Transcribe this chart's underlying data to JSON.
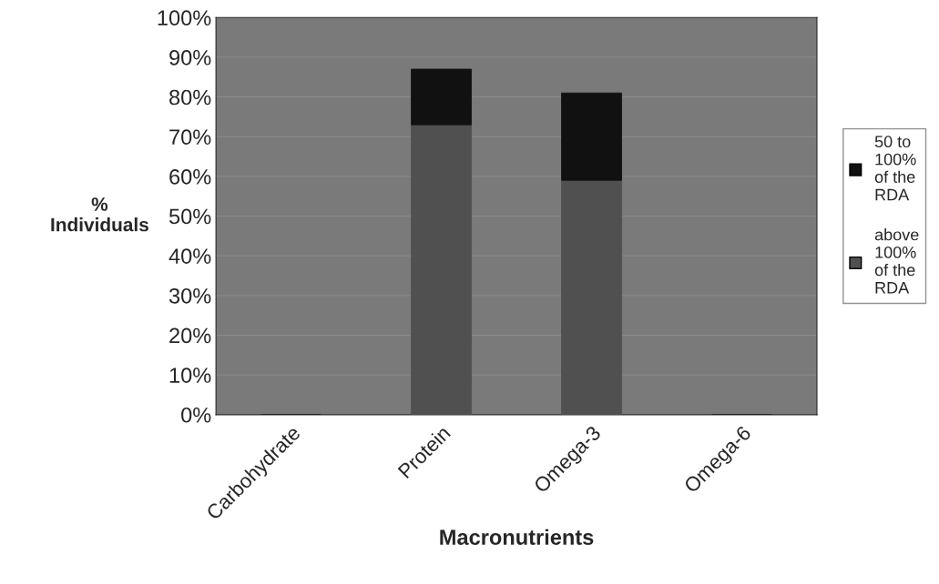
{
  "chart_data": {
    "type": "bar",
    "stacked": true,
    "xlabel": "Macronutrients",
    "ylabel": "%\nIndividuals",
    "categories": [
      "Carbohydrate",
      "Protein",
      "Omega-3",
      "Omega-6"
    ],
    "series": [
      {
        "name": "above 100% of the RDA",
        "color": "#505050",
        "values": [
          0,
          73,
          59,
          0
        ]
      },
      {
        "name": "50 to 100% of the RDA",
        "color": "#111111",
        "values": [
          0,
          14,
          22,
          0
        ]
      }
    ],
    "ylim": [
      0,
      100
    ],
    "yticks": [
      {
        "value": 0,
        "label": "0%"
      },
      {
        "value": 10,
        "label": "10%"
      },
      {
        "value": 20,
        "label": "20%"
      },
      {
        "value": 30,
        "label": "30%"
      },
      {
        "value": 40,
        "label": "40%"
      },
      {
        "value": 50,
        "label": "50%"
      },
      {
        "value": 60,
        "label": "60%"
      },
      {
        "value": 70,
        "label": "70%"
      },
      {
        "value": 80,
        "label": "80%"
      },
      {
        "value": 90,
        "label": "90%"
      },
      {
        "value": 100,
        "label": "100%"
      }
    ],
    "grid": "y",
    "legend": "right"
  }
}
